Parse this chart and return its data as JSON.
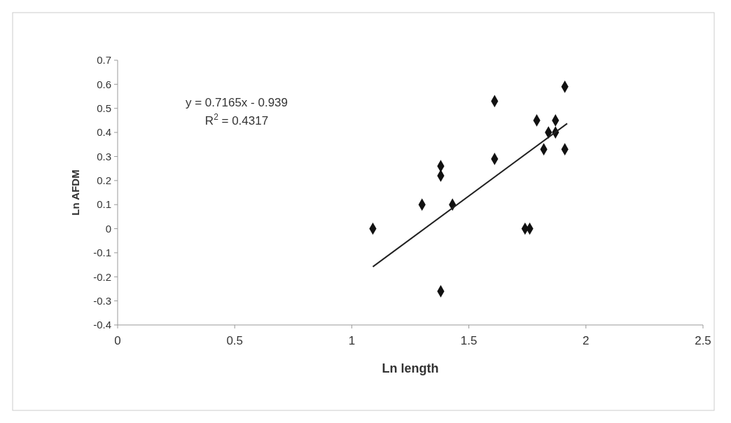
{
  "chart_data": {
    "type": "scatter",
    "xlabel": "Ln length",
    "ylabel": "Ln AFDM",
    "xlim": [
      0,
      2.5
    ],
    "xticks": [
      0,
      0.5,
      1,
      1.5,
      2,
      2.5
    ],
    "ylim": [
      -0.4,
      0.7
    ],
    "yticks": [
      -0.4,
      -0.3,
      -0.2,
      -0.1,
      0,
      0.1,
      0.2,
      0.3,
      0.4,
      0.5,
      0.6,
      0.7
    ],
    "grid": false,
    "marker": "diamond",
    "annotations": [
      "y = 0.7165x - 0.939",
      "R$^{2}$ = 0.4317"
    ],
    "series": [
      {
        "color": "#111111",
        "x": [
          1.09,
          1.3,
          1.38,
          1.38,
          1.43,
          1.38,
          1.61,
          1.61,
          1.74,
          1.76,
          1.79,
          1.87,
          1.82,
          1.91,
          1.84,
          1.87,
          1.91
        ],
        "values": [
          0,
          0.1,
          0.26,
          0.22,
          0.1,
          -0.26,
          0.53,
          0.29,
          0,
          0,
          0.45,
          0.45,
          0.33,
          0.33,
          0.4,
          0.4,
          0.59
        ]
      },
      {
        "type": "line",
        "color": "#222222",
        "marker": "none",
        "x": [
          1.09,
          1.92
        ],
        "values": [
          -0.158,
          0.437
        ]
      }
    ]
  }
}
